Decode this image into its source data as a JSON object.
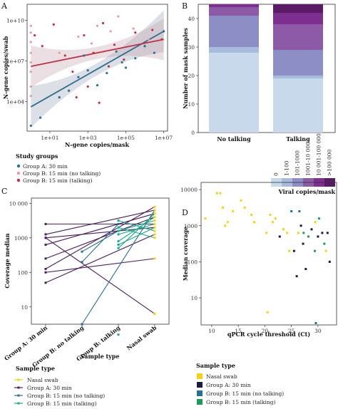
{
  "chart_data": [
    {
      "panel": "A",
      "type": "scatter",
      "xlabel": "N-gene copies/mask",
      "ylabel": "N-gene copies/swab",
      "x_ticks": [
        "1e+01",
        "1e+03",
        "1e+05",
        "1e+07"
      ],
      "y_ticks": [
        "1e+04",
        "1e+07",
        "1e+10"
      ],
      "log_scale": true,
      "xlim_log10": [
        -0.2,
        7.2
      ],
      "ylim_log10": [
        1.8,
        11.2
      ],
      "legend_title": "Study groups",
      "series": [
        {
          "name": "Group A:  30 min",
          "color": "#2a6f8f",
          "points": [
            [
              0,
              2.2
            ],
            [
              0.5,
              2.8
            ],
            [
              1.5,
              4.3
            ],
            [
              2,
              4.8
            ],
            [
              2.5,
              5.8
            ],
            [
              3,
              6.3
            ],
            [
              3.5,
              5.2
            ],
            [
              4,
              6.1
            ],
            [
              4.5,
              7.7
            ],
            [
              5,
              6.5
            ],
            [
              5.5,
              7.2
            ],
            [
              6,
              8.1
            ],
            [
              6.5,
              7.6
            ],
            [
              7,
              9.2
            ],
            [
              2.8,
              7.4
            ],
            [
              4.8,
              6.9
            ]
          ],
          "fit": [
            [
              0,
              3.6
            ],
            [
              7,
              9.2
            ]
          ]
        },
        {
          "name": "Group B:  15 min (no talking)",
          "color": "#e89aa2",
          "points": [
            [
              0,
              9.6
            ],
            [
              0,
              9.1
            ],
            [
              0,
              8.4
            ],
            [
              0,
              7.6
            ],
            [
              0,
              6.9
            ],
            [
              0,
              6.2
            ],
            [
              0,
              5.1
            ],
            [
              0,
              4.4
            ],
            [
              1.5,
              7.6
            ],
            [
              2.5,
              8.8
            ],
            [
              3.2,
              8.3
            ],
            [
              3.5,
              9.6
            ],
            [
              4.2,
              9.2
            ],
            [
              4.6,
              10.3
            ],
            [
              5.4,
              9.4
            ],
            [
              6.2,
              8.6
            ]
          ],
          "fit": [
            [
              0,
              6.7
            ],
            [
              7,
              8.5
            ]
          ]
        },
        {
          "name": "Group B:  15 min (talking)",
          "color": "#c2304a",
          "points": [
            [
              0.2,
              8.9
            ],
            [
              0.6,
              8.1
            ],
            [
              1.2,
              9.7
            ],
            [
              1.8,
              7.4
            ],
            [
              2.2,
              6.2
            ],
            [
              2.8,
              8.9
            ],
            [
              3,
              5.1
            ],
            [
              3.3,
              7.6
            ],
            [
              3.8,
              9.8
            ],
            [
              4.1,
              6.6
            ],
            [
              4.4,
              8.2
            ],
            [
              4.9,
              7.1
            ],
            [
              5.5,
              9.1
            ],
            [
              6.4,
              9.3
            ],
            [
              6.9,
              8.6
            ],
            [
              2.4,
              4.3
            ],
            [
              3.6,
              3.9
            ]
          ],
          "fit": [
            [
              0,
              6.6
            ],
            [
              7,
              8.6
            ]
          ]
        }
      ]
    },
    {
      "panel": "B",
      "type": "bar",
      "stacked": true,
      "ylabel": "Number of mask samples",
      "categories": [
        "No talking",
        "Talking"
      ],
      "ylim": [
        0,
        45
      ],
      "y_ticks": [
        "0",
        "10",
        "20",
        "30",
        "40"
      ],
      "legend_title": "Viral copies/mask",
      "series": [
        {
          "name": "0",
          "color": "#c9d9ec",
          "values": [
            28,
            19
          ]
        },
        {
          "name": "1-100",
          "color": "#a7bcdd",
          "values": [
            2,
            1
          ]
        },
        {
          "name": "101-1000",
          "color": "#8d8ec6",
          "values": [
            11,
            9
          ]
        },
        {
          "name": "1001-10 000",
          "color": "#8c5aa6",
          "values": [
            3,
            9
          ]
        },
        {
          "name": "10 001-100 000",
          "color": "#7c2f8e",
          "values": [
            1,
            4
          ]
        },
        {
          "name": ">100 000",
          "color": "#5b1a66",
          "values": [
            0,
            3
          ]
        }
      ]
    },
    {
      "panel": "C",
      "type": "line",
      "xlabel": "Sample type",
      "ylabel": "Coverage median",
      "categories": [
        "Group A: 30 min",
        "Group B: no talking",
        "Group B: talking",
        "Nasal swab"
      ],
      "y_ticks": [
        "10",
        "100",
        "1000",
        "10 000"
      ],
      "log_scale": true,
      "ylim_log10": [
        0.5,
        4.15
      ],
      "legend_title": "Sample type",
      "series": [
        {
          "name": "Nasal swab",
          "color": "#f2d21a"
        },
        {
          "name": "Group A:  30 min",
          "color": "#4a1c5c",
          "pairs": [
            [
              0,
              2.1,
              3,
              3.9
            ],
            [
              0,
              2.4,
              3,
              3.6
            ],
            [
              0,
              2.8,
              3,
              3.7
            ],
            [
              0,
              3.0,
              3,
              3.3
            ],
            [
              0,
              3.1,
              3,
              3.8
            ],
            [
              0,
              3.4,
              3,
              3.4
            ],
            [
              0,
              2.0,
              3,
              2.4
            ],
            [
              0,
              1.7,
              3,
              3.1
            ],
            [
              0,
              3.0,
              3,
              0.8
            ]
          ]
        },
        {
          "name": "Group B:  15 min (no talking)",
          "color": "#2a6f8f",
          "pairs": [
            [
              1,
              0.5,
              3,
              3.8
            ],
            [
              1,
              2.6,
              2,
              3.2
            ],
            [
              1,
              2.3,
              2,
              3.4
            ]
          ]
        },
        {
          "name": "Group B:  15 min (talking)",
          "color": "#1ea98a",
          "pairs": [
            [
              2,
              3.3,
              3,
              3.0
            ],
            [
              2,
              3.1,
              3,
              3.4
            ],
            [
              2,
              2.9,
              3,
              3.6
            ],
            [
              2,
              2.7,
              3,
              3.7
            ],
            [
              2,
              3.5,
              3,
              3.2
            ],
            [
              2,
              2.8,
              3,
              3.3
            ],
            [
              2,
              3.2,
              3,
              3.5
            ]
          ],
          "extra_points": [
            [
              2,
              0.2
            ]
          ]
        }
      ]
    },
    {
      "panel": "D",
      "type": "scatter",
      "xlabel": "qPCR cycle threshold (Ct)",
      "ylabel": "Median coverage",
      "x_ticks": [
        "10",
        "15",
        "20",
        "25",
        "30"
      ],
      "y_ticks": [
        "10",
        "100",
        "1000",
        "10000"
      ],
      "xlim": [
        8,
        33.5
      ],
      "ylim_log10": [
        0.25,
        4.2
      ],
      "series": [
        {
          "name": "Nasal swab",
          "color": "#f2d21a",
          "points": [
            [
              8.8,
              3.2
            ],
            [
              11,
              3.9
            ],
            [
              11.6,
              3.9
            ],
            [
              12.1,
              3.5
            ],
            [
              12.5,
              3.0
            ],
            [
              13,
              3.1
            ],
            [
              14,
              3.4
            ],
            [
              15.5,
              3.7
            ],
            [
              16.2,
              3.5
            ],
            [
              17.5,
              3.3
            ],
            [
              18,
              3.1
            ],
            [
              20.3,
              2.8
            ],
            [
              21,
              3.3
            ],
            [
              21.5,
              3.1
            ],
            [
              22,
              3.2
            ],
            [
              23.5,
              2.9
            ],
            [
              24.2,
              2.8
            ],
            [
              24.6,
              2.3
            ],
            [
              26.3,
              2.8
            ],
            [
              29.5,
              3.1
            ],
            [
              31.5,
              2.3
            ],
            [
              20.5,
              0.6
            ]
          ]
        },
        {
          "name": "Group A:  30 min",
          "color": "#1c1a3f",
          "points": [
            [
              22.8,
              2.7
            ],
            [
              25.5,
              2.3
            ],
            [
              26,
              1.6
            ],
            [
              26.8,
              3.0
            ],
            [
              27.2,
              2.5
            ],
            [
              27.7,
              1.8
            ],
            [
              28.8,
              2.9
            ],
            [
              30.8,
              2.8
            ],
            [
              31.8,
              2.8
            ],
            [
              32.2,
              2.0
            ],
            [
              30,
              2.7
            ]
          ]
        },
        {
          "name": "Group B:  15 min (no talking)",
          "color": "#2a6f8f",
          "points": [
            [
              25,
              3.4
            ],
            [
              26.5,
              3.4
            ],
            [
              29.6,
              0.3
            ]
          ]
        },
        {
          "name": "Group B:  15 min (talking)",
          "color": "#1e9a5a",
          "points": [
            [
              27.3,
              2.8
            ],
            [
              28.2,
              2.7
            ],
            [
              29.4,
              2.3
            ],
            [
              30.2,
              3.2
            ],
            [
              31.2,
              2.5
            ]
          ]
        }
      ]
    }
  ]
}
